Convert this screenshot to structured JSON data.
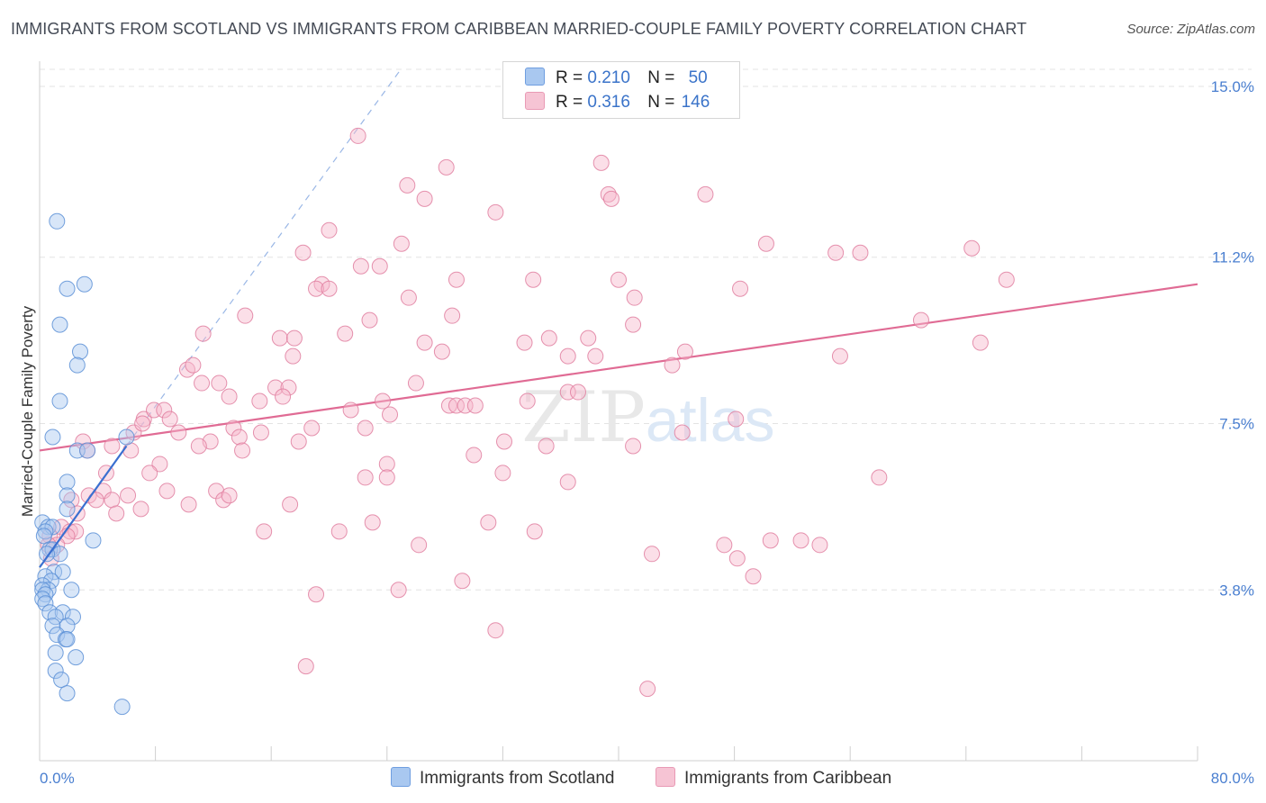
{
  "chart_data": {
    "type": "scatter",
    "title": "IMMIGRANTS FROM SCOTLAND VS IMMIGRANTS FROM CARIBBEAN MARRIED-COUPLE FAMILY POVERTY CORRELATION CHART",
    "source": "Source: ZipAtlas.com",
    "ylabel": "Married-Couple Family Poverty",
    "xlabel": "",
    "xlim": [
      0,
      80
    ],
    "ylim": [
      0,
      15.0
    ],
    "x_tick_labels": [
      "0.0%",
      "80.0%"
    ],
    "y_ticks": [
      3.8,
      7.5,
      11.2,
      15.0
    ],
    "y_tick_labels": [
      "3.8%",
      "7.5%",
      "11.2%",
      "15.0%"
    ],
    "grid": true,
    "watermark": "ZIPatlas",
    "legend_position": "top-center",
    "legend": [
      {
        "r_label": "R =",
        "r_value": "0.210",
        "n_label": "N =",
        "n_value": "50",
        "color": "#a9c8f0"
      },
      {
        "r_label": "R =",
        "r_value": "0.316",
        "n_label": "N =",
        "n_value": "146",
        "color": "#f6b8cb"
      }
    ],
    "series": [
      {
        "name": "Immigrants from Scotland",
        "color": "#a9c8f0",
        "stroke": "#5b8fd6",
        "trend": {
          "x": [
            0.0,
            6.0
          ],
          "y": [
            4.3,
            7.0
          ],
          "color": "#3a6fd0"
        },
        "trend_ext": {
          "x": [
            6.0,
            25.0
          ],
          "y": [
            7.0,
            15.4
          ],
          "color": "#9ab7e6"
        },
        "points": [
          [
            1.2,
            12.0
          ],
          [
            1.9,
            10.5
          ],
          [
            3.1,
            10.6
          ],
          [
            1.4,
            9.7
          ],
          [
            2.8,
            9.1
          ],
          [
            2.6,
            8.8
          ],
          [
            1.4,
            8.0
          ],
          [
            0.9,
            7.2
          ],
          [
            2.6,
            6.9
          ],
          [
            3.3,
            6.9
          ],
          [
            6.0,
            7.2
          ],
          [
            1.9,
            6.2
          ],
          [
            1.9,
            5.9
          ],
          [
            1.9,
            5.6
          ],
          [
            0.2,
            5.3
          ],
          [
            0.6,
            5.2
          ],
          [
            0.9,
            5.2
          ],
          [
            0.4,
            5.1
          ],
          [
            0.3,
            5.0
          ],
          [
            3.7,
            4.9
          ],
          [
            0.7,
            4.7
          ],
          [
            0.9,
            4.7
          ],
          [
            1.4,
            4.6
          ],
          [
            0.5,
            4.6
          ],
          [
            1.0,
            4.2
          ],
          [
            1.6,
            4.2
          ],
          [
            0.4,
            4.1
          ],
          [
            0.8,
            4.0
          ],
          [
            0.2,
            3.9
          ],
          [
            0.6,
            3.8
          ],
          [
            0.2,
            3.8
          ],
          [
            2.2,
            3.8
          ],
          [
            0.4,
            3.7
          ],
          [
            0.2,
            3.6
          ],
          [
            0.4,
            3.5
          ],
          [
            0.7,
            3.3
          ],
          [
            1.6,
            3.3
          ],
          [
            1.1,
            3.2
          ],
          [
            2.3,
            3.2
          ],
          [
            0.9,
            3.0
          ],
          [
            1.9,
            3.0
          ],
          [
            1.2,
            2.8
          ],
          [
            1.8,
            2.7
          ],
          [
            1.9,
            2.7
          ],
          [
            1.1,
            2.4
          ],
          [
            2.5,
            2.3
          ],
          [
            1.1,
            2.0
          ],
          [
            1.5,
            1.8
          ],
          [
            1.9,
            1.5
          ],
          [
            5.7,
            1.2
          ]
        ]
      },
      {
        "name": "Immigrants from Caribbean",
        "color": "#f6b8cb",
        "stroke": "#e07fa0",
        "trend": {
          "x": [
            0.0,
            80.0
          ],
          "y": [
            6.9,
            10.6
          ],
          "color": "#e06b94"
        },
        "points": [
          [
            22.0,
            13.9
          ],
          [
            28.1,
            13.2
          ],
          [
            38.8,
            13.3
          ],
          [
            25.4,
            12.8
          ],
          [
            26.6,
            12.5
          ],
          [
            31.5,
            12.2
          ],
          [
            39.3,
            12.6
          ],
          [
            39.5,
            12.5
          ],
          [
            46.0,
            12.6
          ],
          [
            20.0,
            11.8
          ],
          [
            18.2,
            11.3
          ],
          [
            22.2,
            11.0
          ],
          [
            23.5,
            11.0
          ],
          [
            25.0,
            11.5
          ],
          [
            28.8,
            10.7
          ],
          [
            34.1,
            10.7
          ],
          [
            40.0,
            10.7
          ],
          [
            50.2,
            11.5
          ],
          [
            55.0,
            11.3
          ],
          [
            56.7,
            11.3
          ],
          [
            64.4,
            11.4
          ],
          [
            66.8,
            10.7
          ],
          [
            19.5,
            10.6
          ],
          [
            19.1,
            10.5
          ],
          [
            20.0,
            10.5
          ],
          [
            25.5,
            10.3
          ],
          [
            41.1,
            10.3
          ],
          [
            48.4,
            10.5
          ],
          [
            14.2,
            9.9
          ],
          [
            22.8,
            9.8
          ],
          [
            28.5,
            9.9
          ],
          [
            11.3,
            9.5
          ],
          [
            16.6,
            9.4
          ],
          [
            17.6,
            9.4
          ],
          [
            21.1,
            9.5
          ],
          [
            26.6,
            9.3
          ],
          [
            27.8,
            9.1
          ],
          [
            33.5,
            9.3
          ],
          [
            35.2,
            9.4
          ],
          [
            36.5,
            9.0
          ],
          [
            37.9,
            9.4
          ],
          [
            38.4,
            9.0
          ],
          [
            41.0,
            9.7
          ],
          [
            44.6,
            9.1
          ],
          [
            60.9,
            9.8
          ],
          [
            65.0,
            9.3
          ],
          [
            17.5,
            9.0
          ],
          [
            10.2,
            8.7
          ],
          [
            10.6,
            8.8
          ],
          [
            11.2,
            8.4
          ],
          [
            12.4,
            8.4
          ],
          [
            16.3,
            8.3
          ],
          [
            17.2,
            8.3
          ],
          [
            16.8,
            8.1
          ],
          [
            26.0,
            8.4
          ],
          [
            36.5,
            8.2
          ],
          [
            43.7,
            8.8
          ],
          [
            55.3,
            9.0
          ],
          [
            7.2,
            7.6
          ],
          [
            7.9,
            7.8
          ],
          [
            8.6,
            7.8
          ],
          [
            9.0,
            7.6
          ],
          [
            13.1,
            8.1
          ],
          [
            15.2,
            8.0
          ],
          [
            23.7,
            8.0
          ],
          [
            28.3,
            7.9
          ],
          [
            28.8,
            7.9
          ],
          [
            29.4,
            7.9
          ],
          [
            30.1,
            7.9
          ],
          [
            33.7,
            8.0
          ],
          [
            37.2,
            8.2
          ],
          [
            6.5,
            7.3
          ],
          [
            7.1,
            7.5
          ],
          [
            9.6,
            7.3
          ],
          [
            11.8,
            7.1
          ],
          [
            13.4,
            7.4
          ],
          [
            13.8,
            7.2
          ],
          [
            15.3,
            7.3
          ],
          [
            17.9,
            7.1
          ],
          [
            18.8,
            7.4
          ],
          [
            21.5,
            7.8
          ],
          [
            22.5,
            7.4
          ],
          [
            24.2,
            7.7
          ],
          [
            32.1,
            7.1
          ],
          [
            35.0,
            7.0
          ],
          [
            41.0,
            7.0
          ],
          [
            44.4,
            7.3
          ],
          [
            48.1,
            7.6
          ],
          [
            3.0,
            7.1
          ],
          [
            3.3,
            6.9
          ],
          [
            5.0,
            7.0
          ],
          [
            6.3,
            6.9
          ],
          [
            8.3,
            6.6
          ],
          [
            11.0,
            7.0
          ],
          [
            14.0,
            6.9
          ],
          [
            24.0,
            6.6
          ],
          [
            30.0,
            6.8
          ],
          [
            4.6,
            6.4
          ],
          [
            7.6,
            6.4
          ],
          [
            22.5,
            6.3
          ],
          [
            24.0,
            6.3
          ],
          [
            32.0,
            6.4
          ],
          [
            36.5,
            6.2
          ],
          [
            58.0,
            6.3
          ],
          [
            3.4,
            5.9
          ],
          [
            4.4,
            6.0
          ],
          [
            5.0,
            5.8
          ],
          [
            8.8,
            6.0
          ],
          [
            12.2,
            6.0
          ],
          [
            12.7,
            5.8
          ],
          [
            13.1,
            5.9
          ],
          [
            2.2,
            5.8
          ],
          [
            6.1,
            5.9
          ],
          [
            7.0,
            5.6
          ],
          [
            10.3,
            5.7
          ],
          [
            2.6,
            5.5
          ],
          [
            5.3,
            5.5
          ],
          [
            3.9,
            5.8
          ],
          [
            1.5,
            5.2
          ],
          [
            2.1,
            5.1
          ],
          [
            2.5,
            5.1
          ],
          [
            0.7,
            5.0
          ],
          [
            1.9,
            5.0
          ],
          [
            1.2,
            4.8
          ],
          [
            0.8,
            4.5
          ],
          [
            0.6,
            4.8
          ],
          [
            17.3,
            5.7
          ],
          [
            20.7,
            5.1
          ],
          [
            23.0,
            5.3
          ],
          [
            31.0,
            5.3
          ],
          [
            34.2,
            5.1
          ],
          [
            15.5,
            5.1
          ],
          [
            26.2,
            4.8
          ],
          [
            42.3,
            4.6
          ],
          [
            47.3,
            4.8
          ],
          [
            48.2,
            4.5
          ],
          [
            50.5,
            4.9
          ],
          [
            52.6,
            4.9
          ],
          [
            49.3,
            4.1
          ],
          [
            19.1,
            3.7
          ],
          [
            24.8,
            3.8
          ],
          [
            29.2,
            4.0
          ],
          [
            31.5,
            2.9
          ],
          [
            18.4,
            2.1
          ],
          [
            42.0,
            1.6
          ],
          [
            53.9,
            4.8
          ]
        ]
      }
    ]
  }
}
